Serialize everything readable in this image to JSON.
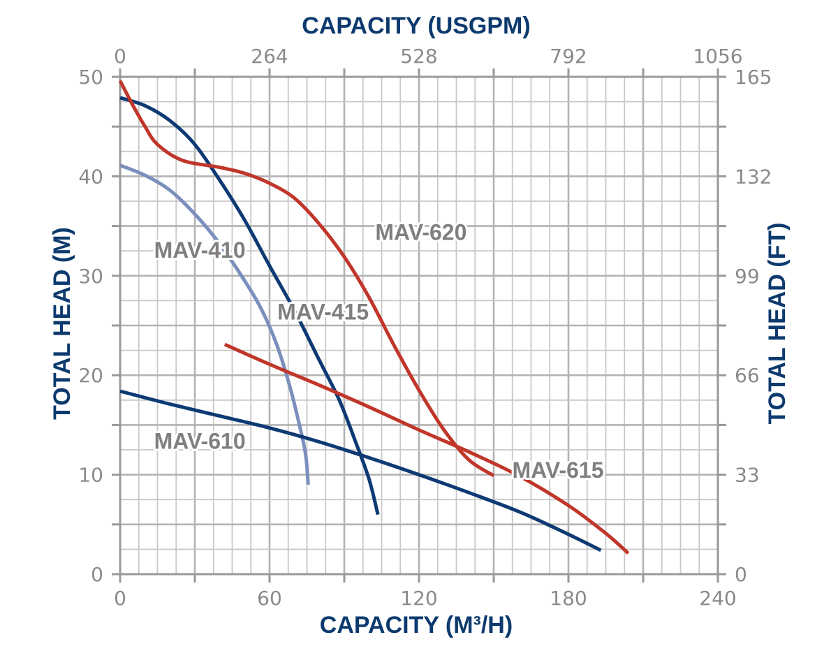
{
  "chart_data": {
    "type": "line",
    "x_axis_bottom": {
      "title": "CAPACITY (M³/H)",
      "range": [
        0,
        240
      ],
      "ticks": [
        "0",
        "60",
        "120",
        "180",
        "240"
      ],
      "tick_values": [
        0,
        60,
        120,
        180,
        240
      ],
      "minor_step": 30,
      "grid_step": 7.5
    },
    "x_axis_top": {
      "title": "CAPACITY (USGPM)",
      "range": [
        0,
        1056
      ],
      "ticks": [
        "0",
        "264",
        "528",
        "792",
        "1056"
      ],
      "tick_values": [
        0,
        264,
        528,
        792,
        1056
      ]
    },
    "y_axis_left": {
      "title": "TOTAL HEAD (M)",
      "range": [
        0,
        50
      ],
      "ticks": [
        "0",
        "10",
        "20",
        "30",
        "40",
        "50"
      ],
      "tick_values": [
        0,
        10,
        20,
        30,
        40,
        50
      ],
      "minor_step": 5,
      "grid_step": 2.5
    },
    "y_axis_right": {
      "title": "TOTAL HEAD (FT)",
      "range": [
        0,
        165
      ],
      "ticks": [
        "0",
        "33",
        "66",
        "99",
        "132",
        "165"
      ],
      "tick_values": [
        0,
        33,
        66,
        99,
        132,
        165
      ]
    },
    "grid": true,
    "colors": {
      "axis_title": "#0d3a6e",
      "grid": "#c8c8c8",
      "axis": "#999999",
      "tick_label": "#8a8a8a",
      "curve_label": "#7f7f7f"
    },
    "series": [
      {
        "name": "MAV-410",
        "color": "#7b8fbd",
        "points": [
          [
            0,
            41.1
          ],
          [
            10,
            40.1
          ],
          [
            20,
            38.6
          ],
          [
            30,
            36.2
          ],
          [
            40,
            33.2
          ],
          [
            50,
            29.5
          ],
          [
            57,
            26.5
          ],
          [
            63,
            23
          ],
          [
            68,
            19
          ],
          [
            72,
            15
          ],
          [
            74.5,
            12
          ],
          [
            75.5,
            9
          ]
        ]
      },
      {
        "name": "MAV-415",
        "color": "#0e3a74",
        "points": [
          [
            0,
            47.9
          ],
          [
            10,
            47.1
          ],
          [
            20,
            45.6
          ],
          [
            30,
            43.2
          ],
          [
            40,
            39.6
          ],
          [
            50,
            35.6
          ],
          [
            60,
            31
          ],
          [
            70,
            26.5
          ],
          [
            80,
            21.5
          ],
          [
            88,
            17.5
          ],
          [
            95,
            13
          ],
          [
            100,
            9.5
          ],
          [
            103.5,
            6
          ]
        ]
      },
      {
        "name": "MAV-610",
        "color": "#0e3a74",
        "points": [
          [
            0,
            18.4
          ],
          [
            20,
            17.1
          ],
          [
            40,
            15.9
          ],
          [
            60,
            14.7
          ],
          [
            80,
            13.3
          ],
          [
            100,
            11.7
          ],
          [
            120,
            10
          ],
          [
            140,
            8.2
          ],
          [
            160,
            6.3
          ],
          [
            175,
            4.6
          ],
          [
            185,
            3.4
          ],
          [
            193,
            2.4
          ]
        ]
      },
      {
        "name": "MAV-615",
        "color": "#c1362a",
        "points": [
          [
            42,
            23.1
          ],
          [
            60,
            21.1
          ],
          [
            80,
            19
          ],
          [
            100,
            16.8
          ],
          [
            120,
            14.5
          ],
          [
            140,
            12.3
          ],
          [
            160,
            9.9
          ],
          [
            180,
            6.9
          ],
          [
            195,
            4.1
          ],
          [
            204,
            2.1
          ]
        ]
      },
      {
        "name": "MAV-620",
        "color": "#c1362a",
        "points": [
          [
            0,
            49.6
          ],
          [
            5,
            47.2
          ],
          [
            10,
            45
          ],
          [
            15,
            43.2
          ],
          [
            25,
            41.6
          ],
          [
            40,
            40.9
          ],
          [
            50,
            40.3
          ],
          [
            60,
            39.3
          ],
          [
            70,
            37.8
          ],
          [
            80,
            35.2
          ],
          [
            90,
            31.9
          ],
          [
            100,
            27.8
          ],
          [
            110,
            23
          ],
          [
            120,
            18.5
          ],
          [
            130,
            14.5
          ],
          [
            140,
            11.5
          ],
          [
            150,
            9.9
          ]
        ]
      }
    ],
    "annotations": [
      {
        "text": "MAV-410",
        "x": 32,
        "y": 31.8
      },
      {
        "text": "MAV-415",
        "x": 81.5,
        "y": 25.6
      },
      {
        "text": "MAV-620",
        "x": 120.8,
        "y": 33.6
      },
      {
        "text": "MAV-610",
        "x": 32,
        "y": 12.6
      },
      {
        "text": "MAV-615",
        "x": 175.8,
        "y": 9.7
      }
    ]
  }
}
